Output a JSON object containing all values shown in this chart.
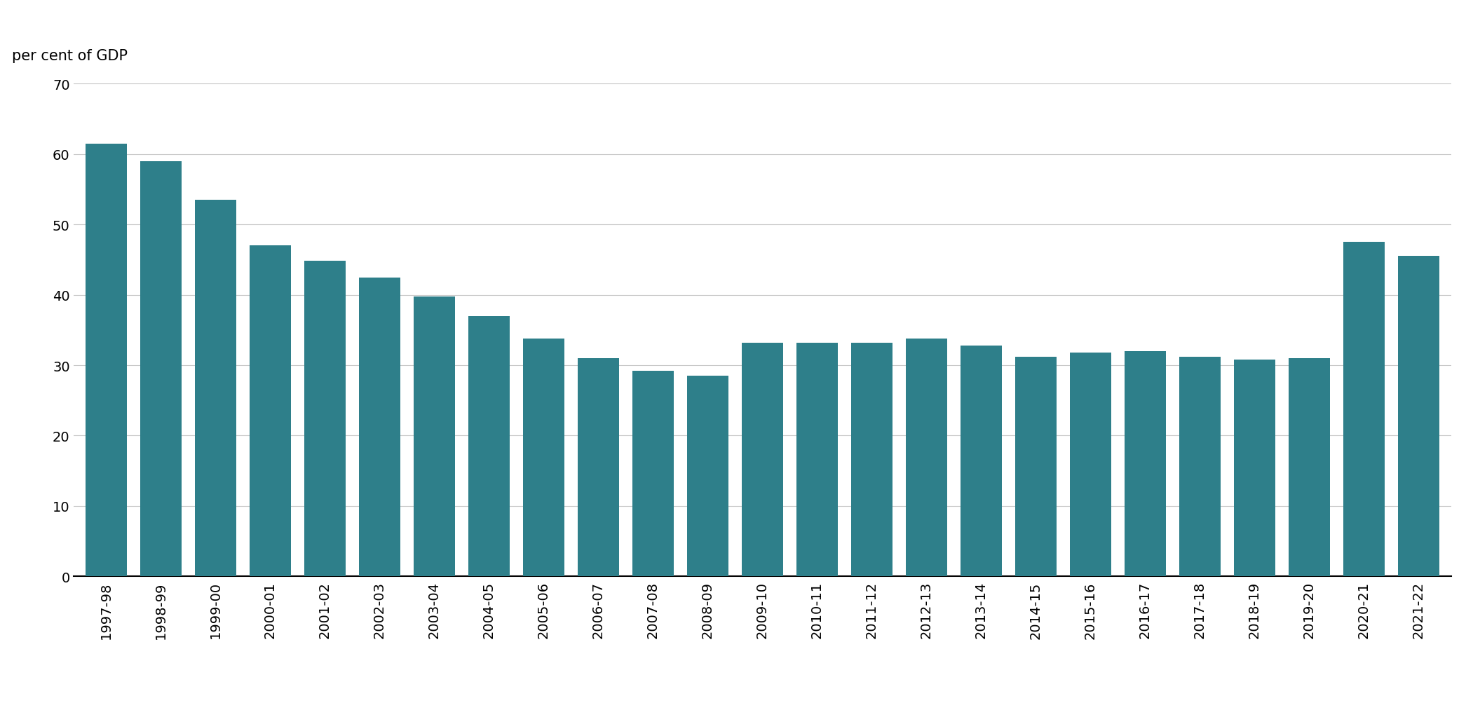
{
  "categories": [
    "1997-98",
    "1998-99",
    "1999-00",
    "2000-01",
    "2001-02",
    "2002-03",
    "2003-04",
    "2004-05",
    "2005-06",
    "2006-07",
    "2007-08",
    "2008-09",
    "2009-10",
    "2010-11",
    "2011-12",
    "2012-13",
    "2013-14",
    "2014-15",
    "2015-16",
    "2016-17",
    "2017-18",
    "2018-19",
    "2019-20",
    "2020-21",
    "2021-22"
  ],
  "values": [
    61.5,
    59.0,
    53.5,
    47.0,
    44.8,
    42.5,
    39.8,
    37.0,
    33.8,
    31.0,
    29.2,
    28.5,
    33.2,
    33.2,
    33.2,
    33.8,
    32.8,
    31.2,
    31.8,
    32.0,
    31.2,
    30.8,
    31.0,
    47.5,
    45.5
  ],
  "bar_color": "#2e7f8a",
  "ylabel": "per cent of GDP",
  "ylim": [
    0,
    70
  ],
  "yticks": [
    0,
    10,
    20,
    30,
    40,
    50,
    60,
    70
  ],
  "background_color": "#ffffff",
  "grid_color": "#c8c8c8",
  "ylabel_fontsize": 15,
  "tick_fontsize": 14
}
